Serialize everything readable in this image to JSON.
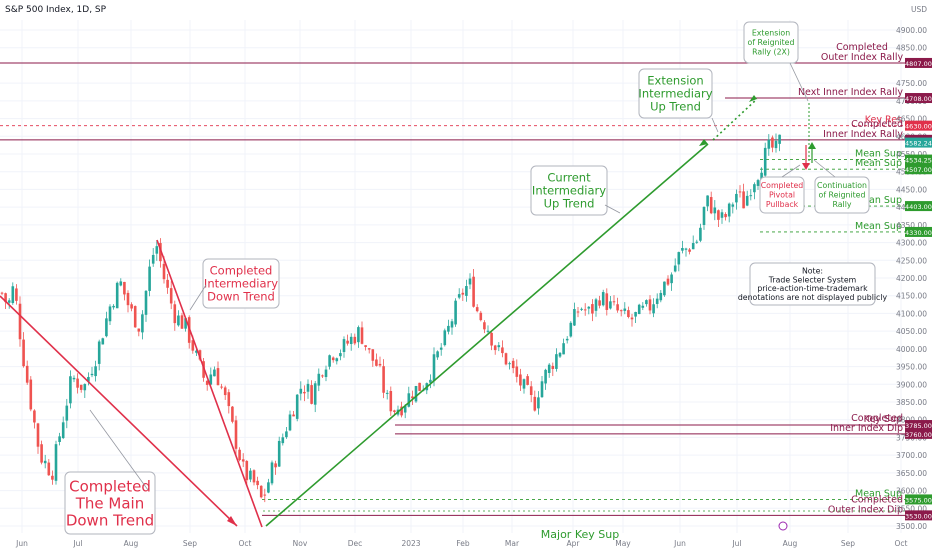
{
  "header": {
    "symbol": "S&P 500 Index, 1D, SP",
    "currency": "USD"
  },
  "colors": {
    "up": "#26a69a",
    "down": "#ef5350",
    "green": "#2e9b2e",
    "red": "#e0304a",
    "maroon": "#8b1a4a",
    "grid": "#f0f3fa"
  },
  "chart_data": {
    "type": "candlestick",
    "x_labels": [
      "Jun",
      "Jul",
      "Aug",
      "Sep",
      "Oct",
      "Nov",
      "Dec",
      "2023",
      "Feb",
      "Mar",
      "Apr",
      "May",
      "Jun",
      "Jul",
      "Aug",
      "Sep",
      "Oct"
    ],
    "y_ticks": [
      "4900.00",
      "4850.00",
      "4750.00",
      "4700.00",
      "4650.00",
      "4600.00",
      "4550.00",
      "4500.00",
      "4450.00",
      "4400.00",
      "4350.00",
      "4300.00",
      "4250.00",
      "4200.00",
      "4150.00",
      "4100.00",
      "4050.00",
      "4000.00",
      "3950.00",
      "3900.00",
      "3850.00",
      "3800.00",
      "3750.00",
      "3700.00",
      "3650.00",
      "3600.00",
      "3550.00",
      "3500.00"
    ],
    "ylim": [
      3490,
      4920
    ],
    "path": [
      [
        0,
        4170
      ],
      [
        8,
        4120
      ],
      [
        14,
        4180
      ],
      [
        22,
        4000
      ],
      [
        30,
        3860
      ],
      [
        40,
        3700
      ],
      [
        52,
        3650
      ],
      [
        62,
        3790
      ],
      [
        72,
        3920
      ],
      [
        84,
        3890
      ],
      [
        96,
        3980
      ],
      [
        110,
        4120
      ],
      [
        120,
        4190
      ],
      [
        130,
        4110
      ],
      [
        140,
        4060
      ],
      [
        150,
        4230
      ],
      [
        156,
        4300
      ],
      [
        164,
        4200
      ],
      [
        174,
        4100
      ],
      [
        186,
        4060
      ],
      [
        196,
        3980
      ],
      [
        206,
        3900
      ],
      [
        214,
        3950
      ],
      [
        224,
        3870
      ],
      [
        234,
        3760
      ],
      [
        244,
        3650
      ],
      [
        254,
        3620
      ],
      [
        262,
        3570
      ],
      [
        270,
        3640
      ],
      [
        280,
        3730
      ],
      [
        290,
        3810
      ],
      [
        302,
        3900
      ],
      [
        312,
        3870
      ],
      [
        322,
        3950
      ],
      [
        332,
        3990
      ],
      [
        342,
        4000
      ],
      [
        352,
        4030
      ],
      [
        360,
        4050
      ],
      [
        370,
        3980
      ],
      [
        378,
        3950
      ],
      [
        386,
        3860
      ],
      [
        394,
        3830
      ],
      [
        402,
        3840
      ],
      [
        412,
        3880
      ],
      [
        424,
        3900
      ],
      [
        434,
        3960
      ],
      [
        444,
        4020
      ],
      [
        454,
        4100
      ],
      [
        464,
        4170
      ],
      [
        470,
        4180
      ],
      [
        478,
        4100
      ],
      [
        488,
        4060
      ],
      [
        496,
        4000
      ],
      [
        506,
        3970
      ],
      [
        516,
        3920
      ],
      [
        526,
        3880
      ],
      [
        534,
        3840
      ],
      [
        540,
        3900
      ],
      [
        550,
        3950
      ],
      [
        560,
        4000
      ],
      [
        570,
        4060
      ],
      [
        580,
        4120
      ],
      [
        590,
        4100
      ],
      [
        600,
        4150
      ],
      [
        610,
        4120
      ],
      [
        620,
        4100
      ],
      [
        630,
        4080
      ],
      [
        640,
        4100
      ],
      [
        650,
        4120
      ],
      [
        660,
        4170
      ],
      [
        670,
        4200
      ],
      [
        680,
        4270
      ],
      [
        690,
        4290
      ],
      [
        698,
        4310
      ],
      [
        706,
        4420
      ],
      [
        712,
        4400
      ],
      [
        720,
        4360
      ],
      [
        728,
        4380
      ],
      [
        736,
        4440
      ],
      [
        744,
        4410
      ],
      [
        752,
        4470
      ],
      [
        758,
        4500
      ],
      [
        764,
        4540
      ],
      [
        770,
        4570
      ],
      [
        776,
        4560
      ],
      [
        780,
        4588
      ]
    ],
    "levels": [
      {
        "id": "outer-rally",
        "price": 4807,
        "value": "4807.00",
        "label": [
          "Completed",
          "Outer Index Rally"
        ],
        "color": "#8b1a4a",
        "dashed": false,
        "labelX": 862,
        "labelAnchor": "middle"
      },
      {
        "id": "next-inner",
        "price": 4708,
        "value": "4708.00",
        "label": [
          "Next Inner Index Rally"
        ],
        "color": "#8b1a4a",
        "dashed": false,
        "labelX": 903,
        "labelAnchor": "end"
      },
      {
        "id": "key-res",
        "price": 4630,
        "value": "4630.00",
        "label": [
          "Key Res"
        ],
        "color": "#e0304a",
        "dashed": true,
        "labelX": 902,
        "labelAnchor": "end"
      },
      {
        "id": "inner-rally",
        "price": 4590,
        "value": "4590.00",
        "label": [
          "Completed",
          "Inner Index Rally"
        ],
        "color": "#8b1a4a",
        "dashed": false,
        "labelX": 903,
        "labelAnchor": "end"
      },
      {
        "id": "mean-sup-1",
        "price": 4534.25,
        "value": "4534.25",
        "label": [
          "Mean Sup"
        ],
        "color": "#2e9b2e",
        "dashed": true,
        "labelX": 902,
        "labelAnchor": "end"
      },
      {
        "id": "mean-sup-2",
        "price": 4507,
        "value": "4507.00",
        "label": [
          "Mean Sup"
        ],
        "color": "#2e9b2e",
        "dashed": true,
        "labelX": 902,
        "labelAnchor": "end"
      },
      {
        "id": "mean-sup-3",
        "price": 4403,
        "value": "4403.00",
        "label": [
          "Mean Sup"
        ],
        "color": "#2e9b2e",
        "dashed": true,
        "labelX": 902,
        "labelAnchor": "end"
      },
      {
        "id": "mean-sup-4",
        "price": 4330,
        "value": "4330.00",
        "label": [
          "Mean Sup"
        ],
        "color": "#2e9b2e",
        "dashed": true,
        "labelX": 902,
        "labelAnchor": "end"
      },
      {
        "id": "key-sup",
        "price": 3785,
        "value": "3785.00",
        "label": [
          "Key Sup"
        ],
        "color": "#8b1a4a",
        "dashed": false,
        "labelX": 902,
        "labelAnchor": "end"
      },
      {
        "id": "inner-dip",
        "price": 3760,
        "value": "3760.00",
        "label": [
          "Completed",
          "Inner Index Dip"
        ],
        "color": "#8b1a4a",
        "dashed": false,
        "labelX": 903,
        "labelAnchor": "end"
      },
      {
        "id": "mean-sup-5",
        "price": 3575,
        "value": "3575.00",
        "label": [
          "Mean Sup"
        ],
        "color": "#2e9b2e",
        "dashed": true,
        "labelX": 902,
        "labelAnchor": "end"
      },
      {
        "id": "outer-dip",
        "price": 3530,
        "value": "3530.00",
        "label": [
          "Completed",
          "Outer Index Dip"
        ],
        "color": "#8b1a4a",
        "dashed": false,
        "labelX": 903,
        "labelAnchor": "end"
      }
    ],
    "current_price": {
      "value": "4582.24",
      "price": 4582.24,
      "color": "#26a69a"
    },
    "bottom_cut_label": "Major Key Sup"
  },
  "annotations": {
    "main_down": "Completed\nThe Main\nDown Trend",
    "intermediary_down": "Completed\nIntermediary\nDown Trend",
    "current_up": "Current\nIntermediary\nUp Trend",
    "extension_up": "Extension\nIntermediary\nUp Trend",
    "extension_reignited": "Extension\nof Reignited\nRally (2X)",
    "pivotal_pullback": "Completed\nPivotal\nPullback",
    "continuation": "Continuation\nof Reignited\nRally",
    "note": "Note:\nTrade Selecter System\nprice-action-time-trademark\ndenotations are not displayed publicly"
  }
}
